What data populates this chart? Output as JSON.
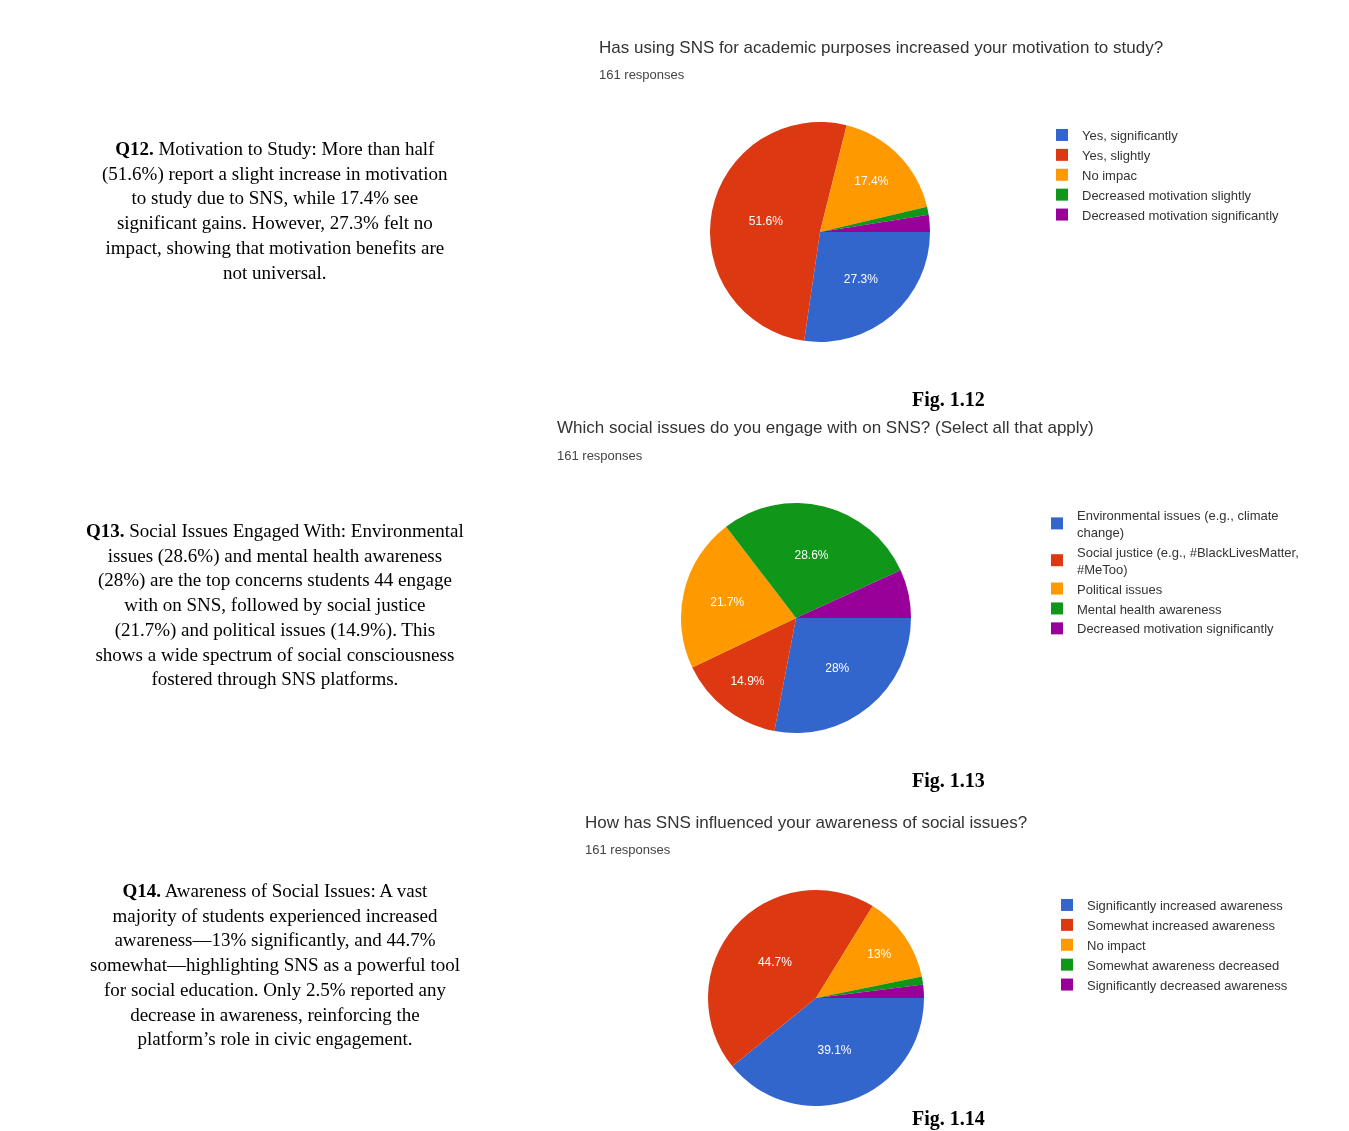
{
  "chart_data": [
    {
      "type": "other",
      "annotations": [
        "Q12. Motivation to Study: More than half (51.6%) report a slight increase in motivation to study due to SNS, while 17.4% see significant gains. However, 27.3% felt no impact, showing that motivation benefits are not universal."
      ]
    },
    {
      "type": "pie",
      "title": "Has using SNS for academic purposes increased your motivation to study?",
      "subtitle": "161 responses",
      "categories": [
        "Yes, significantly",
        "Yes, slightly",
        "No impac",
        "Decreased motivation slightly",
        "Decreased motivation significantly"
      ],
      "values": [
        27.3,
        51.6,
        17.4,
        1.2,
        2.5
      ],
      "colors": [
        "#3366cc",
        "#dc3912",
        "#ff9900",
        "#109618",
        "#990099"
      ],
      "value_labels": [
        "27.3%",
        "51.6%",
        "17.4%",
        null,
        null
      ],
      "legend": "right",
      "annotations": [
        "Fig. 1.12"
      ]
    },
    {
      "type": "other",
      "annotations": [
        "Q13. Social Issues Engaged With: Environmental issues (28.6%) and mental health awareness (28%) are the top concerns students 44 engage with on SNS, followed by social justice (21.7%) and political issues (14.9%). This shows a wide spectrum of social consciousness fostered through SNS platforms."
      ]
    },
    {
      "type": "pie",
      "title": "Which social issues do you engage with on SNS? (Select all that apply)",
      "subtitle": "161 responses",
      "categories": [
        "Environmental issues (e.g., climate change)",
        "Social justice (e.g., #BlackLivesMatter, #MeToo)",
        "Political issues",
        "Mental health awareness",
        "Decreased motivation significantly"
      ],
      "values": [
        28,
        14.9,
        21.7,
        28.6,
        6.8
      ],
      "colors": [
        "#3366cc",
        "#dc3912",
        "#ff9900",
        "#109618",
        "#990099"
      ],
      "value_labels": [
        "28%",
        "14.9%",
        "21.7%",
        "28.6%",
        null
      ],
      "legend": "right",
      "annotations": [
        "Fig. 1.13"
      ]
    },
    {
      "type": "other",
      "annotations": [
        "Q14. Awareness of Social Issues: A vast majority of students experienced increased awareness—13% significantly, and 44.7% somewhat—highlighting SNS as a powerful tool for social education. Only 2.5% reported any decrease in awareness, reinforcing the platform’s role in civic engagement."
      ]
    },
    {
      "type": "pie",
      "title": "How has SNS influenced your awareness of social issues?",
      "subtitle": "161 responses",
      "categories": [
        "Significantly increased awareness",
        "Somewhat increased awareness",
        "No impact",
        "Somewhat awareness decreased",
        "Significantly decreased awareness"
      ],
      "values": [
        39.1,
        44.7,
        13,
        1.2,
        2.0
      ],
      "colors": [
        "#3366cc",
        "#dc3912",
        "#ff9900",
        "#109618",
        "#990099"
      ],
      "value_labels": [
        "39.1%",
        "44.7%",
        "13%",
        null,
        null
      ],
      "legend": "right",
      "annotations": [
        "Fig. 1.14"
      ]
    }
  ]
}
